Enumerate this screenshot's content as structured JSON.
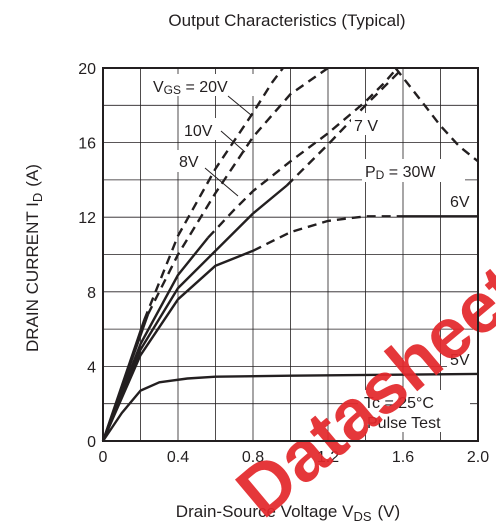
{
  "chart_data": {
    "type": "line",
    "title": "Output Characteristics (Typical)",
    "xlabel": {
      "main": "Drain-Source Voltage  V",
      "sub": "DS",
      "unit": "(V)"
    },
    "ylabel": {
      "main": "DRAIN CURRENT  I",
      "sub": "D",
      "unit": "(A)"
    },
    "xlim": [
      0,
      2.0
    ],
    "ylim": [
      0,
      20
    ],
    "x_ticks": [
      0,
      0.4,
      0.8,
      1.2,
      1.6,
      2.0
    ],
    "x_tick_labels": [
      "0",
      "0.4",
      "0.8",
      "1.2",
      "1.6",
      "2.0"
    ],
    "y_ticks": [
      0,
      4,
      8,
      12,
      16,
      20
    ],
    "y_tick_labels": [
      "0",
      "4",
      "8",
      "12",
      "16",
      "20"
    ],
    "grid": true,
    "series": [
      {
        "name": "VGS = 20V",
        "solid": [
          [
            0,
            0
          ],
          [
            0.22,
            6.5
          ]
        ],
        "dashed": [
          [
            0.22,
            6.5
          ],
          [
            0.4,
            11.0
          ],
          [
            0.6,
            14.6
          ],
          [
            0.8,
            17.6
          ],
          [
            0.9,
            19.2
          ],
          [
            0.96,
            20.0
          ]
        ]
      },
      {
        "name": "10V",
        "solid": [
          [
            0,
            0
          ],
          [
            0.24,
            6.8
          ]
        ],
        "dashed": [
          [
            0.24,
            6.8
          ],
          [
            0.4,
            10.0
          ],
          [
            0.6,
            13.3
          ],
          [
            0.8,
            16.3
          ],
          [
            1.0,
            18.6
          ],
          [
            1.2,
            20.0
          ]
        ]
      },
      {
        "name": "8V",
        "solid": [
          [
            0,
            0
          ],
          [
            0.2,
            5.2
          ],
          [
            0.4,
            8.9
          ],
          [
            0.56,
            10.9
          ]
        ],
        "dashed": [
          [
            0.56,
            10.9
          ],
          [
            0.7,
            12.4
          ],
          [
            0.8,
            13.4
          ],
          [
            1.0,
            15.0
          ],
          [
            1.2,
            16.5
          ],
          [
            1.4,
            18.2
          ],
          [
            1.5,
            19.2
          ],
          [
            1.56,
            19.9
          ]
        ]
      },
      {
        "name": "7V",
        "solid": [
          [
            0,
            0
          ],
          [
            0.2,
            4.9
          ],
          [
            0.4,
            8.2
          ],
          [
            0.8,
            12.2
          ],
          [
            0.98,
            13.7
          ]
        ],
        "dashed": [
          [
            0.98,
            13.7
          ],
          [
            1.2,
            15.9
          ],
          [
            1.4,
            18.0
          ],
          [
            1.5,
            19.0
          ],
          [
            1.58,
            19.8
          ]
        ]
      },
      {
        "name": "6V",
        "solid": [
          [
            0,
            0
          ],
          [
            0.2,
            4.6
          ],
          [
            0.4,
            7.6
          ],
          [
            0.6,
            9.4
          ],
          [
            0.8,
            10.2
          ]
        ],
        "dashed": [
          [
            0.8,
            10.2
          ],
          [
            1.0,
            11.2
          ],
          [
            1.2,
            11.8
          ],
          [
            1.4,
            12.05
          ],
          [
            1.6,
            12.05
          ]
        ],
        "solid2": [
          [
            1.6,
            12.05
          ],
          [
            2.0,
            12.05
          ]
        ]
      },
      {
        "name": "5V",
        "solid": [
          [
            0,
            0
          ],
          [
            0.1,
            1.5
          ],
          [
            0.2,
            2.7
          ],
          [
            0.3,
            3.15
          ],
          [
            0.45,
            3.35
          ],
          [
            0.6,
            3.45
          ],
          [
            1.0,
            3.5
          ],
          [
            1.5,
            3.55
          ],
          [
            2.0,
            3.6
          ]
        ]
      },
      {
        "name": "PD = 30W",
        "dashed": [
          [
            1.56,
            20.0
          ],
          [
            1.7,
            18.2
          ],
          [
            1.8,
            16.9
          ],
          [
            1.9,
            15.8
          ],
          [
            2.0,
            15.0
          ]
        ]
      }
    ],
    "labels": {
      "vgs20": {
        "main": "V",
        "sub": "GS",
        "rest": " = 20V"
      },
      "v10": "10V",
      "v8": "8V",
      "v7": "7 V",
      "v6": "6V",
      "v5": "5V",
      "pd": {
        "main": "P",
        "sub": "D",
        "rest": " = 30W"
      },
      "tc": "Tc = 25°C",
      "pulse": "Pulse Test"
    }
  },
  "watermark": {
    "text": "Datasheet",
    "color": "#e4282c"
  }
}
